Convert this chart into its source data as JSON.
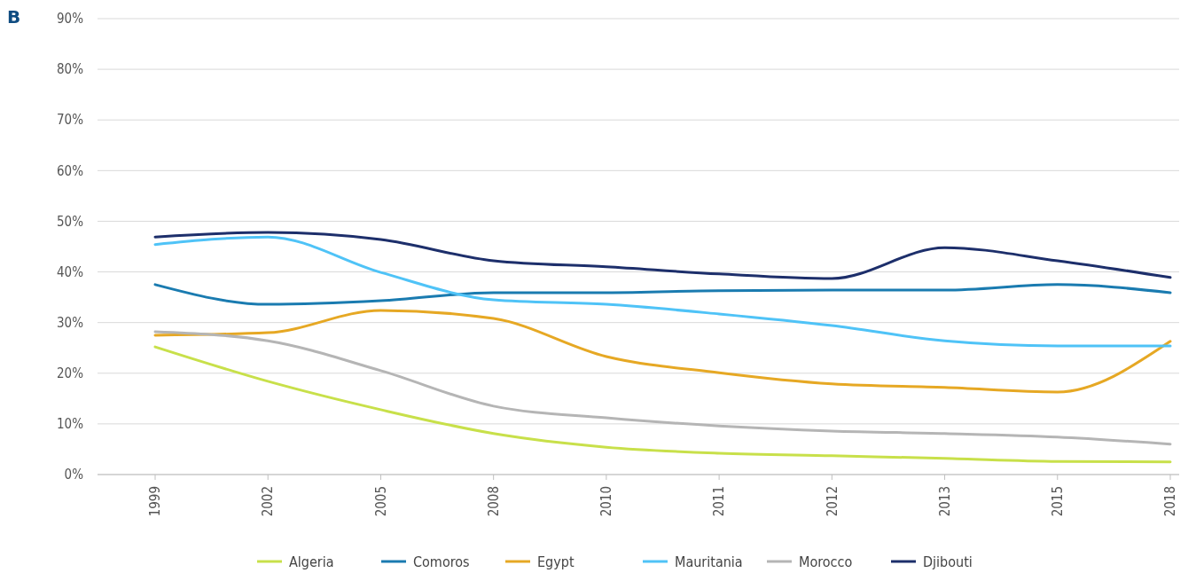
{
  "chart_data": {
    "type": "line",
    "annotations": [
      "B"
    ],
    "categories": [
      "1999",
      "2002",
      "2005",
      "2008",
      "2010",
      "2011",
      "2012",
      "2013",
      "2015",
      "2018"
    ],
    "series": [
      {
        "name": "Algeria",
        "color": "#c8e04a",
        "values": [
          25.2,
          18.4,
          12.8,
          8.1,
          5.4,
          4.2,
          3.7,
          3.2,
          2.6,
          2.5
        ]
      },
      {
        "name": "Comoros",
        "color": "#1a7bb0",
        "values": [
          37.5,
          33.6,
          34.3,
          35.9,
          35.9,
          36.3,
          36.4,
          36.4,
          37.5,
          35.9
        ]
      },
      {
        "name": "Egypt",
        "color": "#e6a824",
        "values": [
          27.5,
          28,
          32.4,
          30.8,
          23.3,
          20.1,
          17.9,
          17.2,
          16.3,
          26.3
        ]
      },
      {
        "name": "Mauritania",
        "color": "#4fc3f7",
        "values": [
          45.4,
          46.9,
          39.9,
          34.5,
          33.6,
          31.7,
          29.4,
          26.4,
          25.4,
          25.4
        ]
      },
      {
        "name": "Morocco",
        "color": "#b5b5b5",
        "values": [
          28.2,
          26.4,
          20.5,
          13.5,
          11.2,
          9.6,
          8.6,
          8.1,
          7.4,
          6.0
        ]
      },
      {
        "name": "Djibouti",
        "color": "#1d2f6b",
        "values": [
          46.9,
          47.8,
          46.4,
          42.2,
          41.0,
          39.6,
          38.7,
          44.8,
          42.2,
          38.9
        ]
      }
    ],
    "ylim": [
      0,
      90
    ],
    "yticks": [
      {
        "value": 0,
        "label": "0%"
      },
      {
        "value": 10,
        "label": "10%"
      },
      {
        "value": 20,
        "label": "20%"
      },
      {
        "value": 30,
        "label": "30%"
      },
      {
        "value": 40,
        "label": "40%"
      },
      {
        "value": 50,
        "label": "50%"
      },
      {
        "value": 60,
        "label": "60%"
      },
      {
        "value": 70,
        "label": "70%"
      },
      {
        "value": 80,
        "label": "80%"
      },
      {
        "value": 90,
        "label": "90%"
      }
    ],
    "grid": "y",
    "legend": "bottom",
    "marker": "none",
    "line_style": "solid"
  }
}
